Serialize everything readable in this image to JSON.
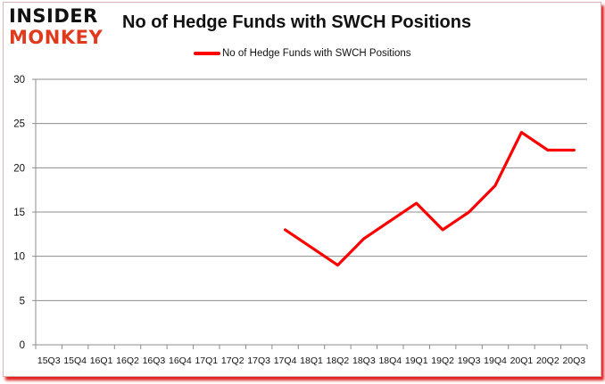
{
  "brand": {
    "logo_line1": "INSIDER",
    "logo_line2": "MONKEY",
    "logo_color_dark": "#111111",
    "logo_color_accent": "#e03a1e"
  },
  "chart_data": {
    "type": "line",
    "title": "No of Hedge Funds with SWCH Positions",
    "xlabel": "",
    "ylabel": "",
    "ylim": [
      0,
      30
    ],
    "yticks": [
      0,
      5,
      10,
      15,
      20,
      25,
      30
    ],
    "grid": true,
    "legend_position": "top",
    "categories": [
      "15Q3",
      "15Q4",
      "16Q1",
      "16Q2",
      "16Q3",
      "16Q4",
      "17Q1",
      "17Q2",
      "17Q3",
      "17Q4",
      "18Q1",
      "18Q2",
      "18Q3",
      "18Q4",
      "19Q1",
      "19Q2",
      "19Q3",
      "19Q4",
      "20Q1",
      "20Q2",
      "20Q3"
    ],
    "series": [
      {
        "name": "No of Hedge Funds with SWCH Positions",
        "color": "#ff0000",
        "values": [
          null,
          null,
          null,
          null,
          null,
          null,
          null,
          null,
          null,
          13,
          11,
          9,
          12,
          14,
          16,
          13,
          15,
          18,
          24,
          22,
          22
        ]
      }
    ]
  }
}
